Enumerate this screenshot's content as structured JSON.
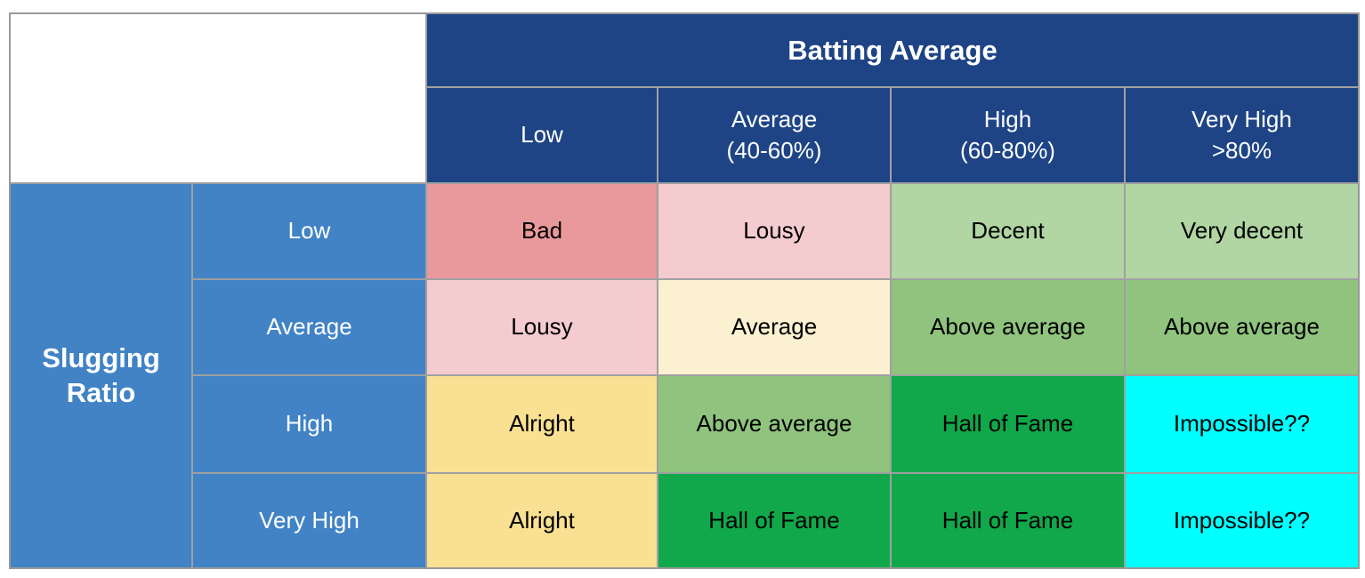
{
  "colors": {
    "header_blue": "#1E4485",
    "side_blue": "#4183C5",
    "gridline_gray": "#A0A0A0",
    "white_text": "#FFFFFF",
    "black_text": "#000000",
    "bad_red": "#E9999C",
    "lousy_pink": "#F4CBCE",
    "average_cream": "#FBF0D0",
    "alright_yellow": "#FAE092",
    "decent_light_green": "#B1D5A3",
    "above_avg_green": "#90C47E",
    "hall_of_fame_green": "#10A84A",
    "impossible_cyan": "#00FFFF"
  },
  "chart_data": {
    "type": "table",
    "title": "",
    "col_group_header": "Batting Average",
    "row_group_header": "Slugging Ratio",
    "col_group_bg": "#1E4485",
    "row_group_bg": "#4183C5",
    "columns": [
      {
        "line1": "Low",
        "line2": "",
        "bg": "#1E4485"
      },
      {
        "line1": "Average",
        "line2": "(40-60%)",
        "bg": "#1E4485"
      },
      {
        "line1": "High",
        "line2": "(60-80%)",
        "bg": "#1E4485"
      },
      {
        "line1": "Very High",
        "line2": ">80%",
        "bg": "#1E4485"
      }
    ],
    "rows": [
      {
        "label": "Low",
        "label_bg": "#4183C5",
        "cells": [
          {
            "text": "Bad",
            "bg": "#E9999C"
          },
          {
            "text": "Lousy",
            "bg": "#F4CBCE"
          },
          {
            "text": "Decent",
            "bg": "#B1D5A3"
          },
          {
            "text": "Very decent",
            "bg": "#B1D5A3"
          }
        ]
      },
      {
        "label": "Average",
        "label_bg": "#4183C5",
        "cells": [
          {
            "text": "Lousy",
            "bg": "#F4CBCE"
          },
          {
            "text": "Average",
            "bg": "#FBF0D0"
          },
          {
            "text": "Above average",
            "bg": "#90C47E"
          },
          {
            "text": "Above average",
            "bg": "#90C47E"
          }
        ]
      },
      {
        "label": "High",
        "label_bg": "#4183C5",
        "cells": [
          {
            "text": "Alright",
            "bg": "#FAE092"
          },
          {
            "text": "Above average",
            "bg": "#90C47E"
          },
          {
            "text": "Hall of Fame",
            "bg": "#10A84A"
          },
          {
            "text": "Impossible??",
            "bg": "#00FFFF"
          }
        ]
      },
      {
        "label": "Very High",
        "label_bg": "#4183C5",
        "cells": [
          {
            "text": "Alright",
            "bg": "#FAE092"
          },
          {
            "text": "Hall of Fame",
            "bg": "#10A84A"
          },
          {
            "text": "Hall of Fame",
            "bg": "#10A84A"
          },
          {
            "text": "Impossible??",
            "bg": "#00FFFF"
          }
        ]
      }
    ]
  }
}
